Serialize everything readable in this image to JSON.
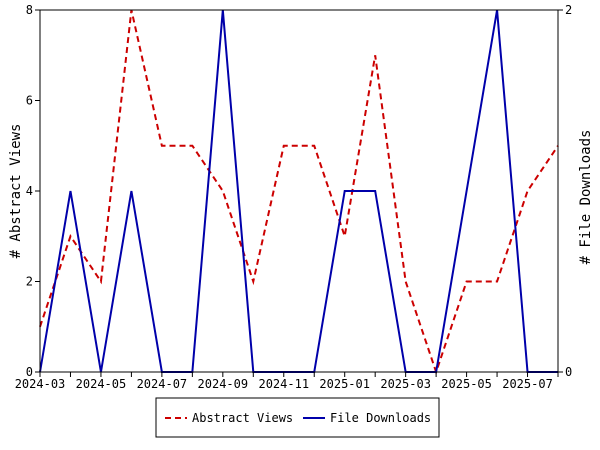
{
  "chart_data": {
    "type": "line",
    "title": "",
    "xlabel": "",
    "ylabel": "# Abstract Views",
    "y2label": "# File Downloads",
    "x": [
      "2024-03",
      "2024-04",
      "2024-05",
      "2024-06",
      "2024-07",
      "2024-08",
      "2024-09",
      "2024-10",
      "2024-11",
      "2024-12",
      "2025-01",
      "2025-02",
      "2025-03",
      "2025-04",
      "2025-05",
      "2025-06",
      "2025-07",
      "2025-08"
    ],
    "x_tick_labels": [
      "2024-03",
      "2024-05",
      "2024-07",
      "2024-09",
      "2024-11",
      "2025-01",
      "2025-03",
      "2025-05",
      "2025-07"
    ],
    "ylim": [
      0,
      8
    ],
    "y_ticks": [
      "0",
      "2",
      "4",
      "6",
      "8"
    ],
    "y2lim": [
      0,
      2
    ],
    "y2_ticks": [
      "0",
      "2"
    ],
    "grid": false,
    "legend_position": "bottom-center",
    "series": [
      {
        "name": "Abstract Views",
        "axis": "left",
        "style": "dashed",
        "color": "#cc0000",
        "values": [
          1,
          3,
          2,
          8,
          5,
          5,
          4,
          2,
          5,
          5,
          3,
          7,
          2,
          0,
          2,
          2,
          4,
          5
        ]
      },
      {
        "name": "File Downloads",
        "axis": "right",
        "style": "solid",
        "color": "#0000aa",
        "values": [
          0,
          1,
          0,
          1,
          0,
          0,
          2,
          0,
          0,
          0,
          1,
          1,
          0,
          0,
          1,
          2,
          0,
          0
        ]
      }
    ]
  }
}
